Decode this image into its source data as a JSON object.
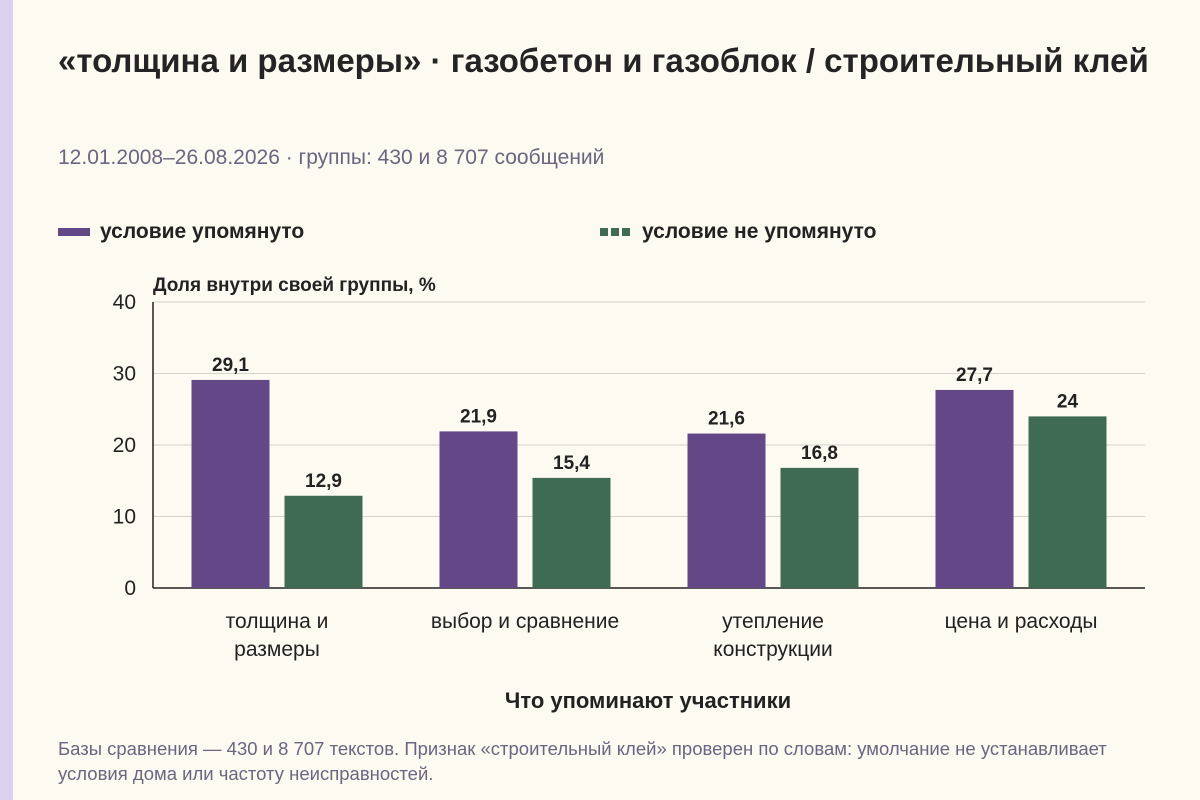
{
  "header": {
    "title": "«толщина и размеры» · газобетон и газоблок / строительный клей",
    "subtitle": "12.01.2008–26.08.2026 · группы: 430 и 8 707 сообщений"
  },
  "footnote": "Базы сравнения — 430 и 8 707 текстов. Признак «строительный клей» проверен по словам: умолчание не устанавливает условия дома или частоту неисправностей.",
  "chart_data": {
    "type": "bar",
    "ylabel": "Доля внутри своей группы, %",
    "xlabel": "Что упоминают участники",
    "ylim": [
      0,
      40
    ],
    "yticks": [
      0,
      10,
      20,
      30,
      40
    ],
    "grid": true,
    "legend_position": "top",
    "categories": [
      [
        "толщина и",
        "размеры"
      ],
      [
        "выбор и сравнение"
      ],
      [
        "утепление",
        "конструкции"
      ],
      [
        "цена и расходы"
      ]
    ],
    "series": [
      {
        "name": "условие упомянуто",
        "color": "#634787",
        "values": [
          29.1,
          21.9,
          21.6,
          27.7
        ],
        "labels": [
          "29,1",
          "21,9",
          "21,6",
          "27,7"
        ]
      },
      {
        "name": "условие не упомянуто",
        "color": "#3f6a53",
        "values": [
          12.9,
          15.4,
          16.8,
          24
        ],
        "labels": [
          "12,9",
          "15,4",
          "16,8",
          "24"
        ]
      }
    ]
  }
}
